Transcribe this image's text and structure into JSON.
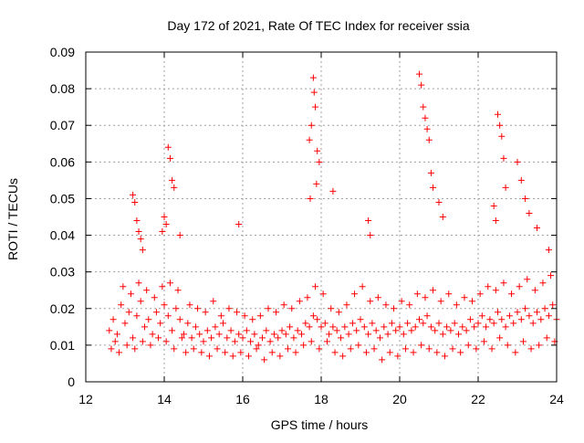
{
  "chart_data": {
    "type": "scatter",
    "title": "Day 172 of 2021, Rate Of TEC Index for receiver ssia",
    "xlabel": "GPS time / hours",
    "ylabel": "ROTI / TECUs",
    "xlim": [
      12,
      24
    ],
    "ylim": [
      0,
      0.09
    ],
    "x_ticks": [
      12,
      14,
      16,
      18,
      20,
      22,
      24
    ],
    "x_tick_labels": [
      "12",
      "14",
      "16",
      "18",
      "20",
      "22",
      "24"
    ],
    "y_ticks": [
      0,
      0.01,
      0.02,
      0.03,
      0.04,
      0.05,
      0.06,
      0.07,
      0.08,
      0.09
    ],
    "y_tick_labels": [
      "0",
      "0.01",
      "0.02",
      "0.03",
      "0.04",
      "0.05",
      "0.06",
      "0.07",
      "0.08",
      "0.09"
    ],
    "grid": true,
    "marker": "+",
    "color": "#ff0000",
    "series": [
      {
        "name": "ROTI",
        "x": [
          12.6,
          12.7,
          12.8,
          12.9,
          13.0,
          13.1,
          13.2,
          13.3,
          13.4,
          13.5,
          13.6,
          13.7,
          13.8,
          13.9,
          14.0,
          14.1,
          14.2,
          14.3,
          14.4,
          14.5,
          14.6,
          14.7,
          14.8,
          14.9,
          15.0,
          15.1,
          15.2,
          15.3,
          15.4,
          15.5,
          15.6,
          15.7,
          15.8,
          15.9,
          16.0,
          16.1,
          16.2,
          16.3,
          16.4,
          16.5,
          16.6,
          16.7,
          16.8,
          16.9,
          17.0,
          17.1,
          17.2,
          17.3,
          17.4,
          17.5,
          17.6,
          17.7,
          17.8,
          17.9,
          18.0,
          18.1,
          18.2,
          18.3,
          18.4,
          18.5,
          18.6,
          18.7,
          18.8,
          18.9,
          19.0,
          19.1,
          19.2,
          19.3,
          19.4,
          19.5,
          19.6,
          19.7,
          19.8,
          19.9,
          20.0,
          20.1,
          20.2,
          20.3,
          20.4,
          20.5,
          20.6,
          20.7,
          20.8,
          20.9,
          21.0,
          21.1,
          21.2,
          21.3,
          21.4,
          21.5,
          21.6,
          21.7,
          21.8,
          21.9,
          22.0,
          22.1,
          22.2,
          22.3,
          22.4,
          22.5,
          22.6,
          22.7,
          22.8,
          22.9,
          23.0,
          23.1,
          23.2,
          23.3,
          23.4,
          23.5,
          23.6,
          23.7,
          23.8,
          23.9,
          24.0,
          12.65,
          12.75,
          12.85,
          12.95,
          13.05,
          13.15,
          13.25,
          13.35,
          13.45,
          13.55,
          13.65,
          13.75,
          13.85,
          13.95,
          14.05,
          14.15,
          14.25,
          14.35,
          14.45,
          14.55,
          14.65,
          14.75,
          14.85,
          14.95,
          15.05,
          15.15,
          15.25,
          15.35,
          15.45,
          15.55,
          15.65,
          15.75,
          15.85,
          15.95,
          16.05,
          16.15,
          16.25,
          16.35,
          16.45,
          16.55,
          16.65,
          16.75,
          16.85,
          16.95,
          17.05,
          17.15,
          17.25,
          17.35,
          17.45,
          17.55,
          17.65,
          17.75,
          17.85,
          17.95,
          18.05,
          18.15,
          18.25,
          18.35,
          18.45,
          18.55,
          18.65,
          18.75,
          18.85,
          18.95,
          19.05,
          19.15,
          19.25,
          19.35,
          19.45,
          19.55,
          19.65,
          19.75,
          19.85,
          19.95,
          20.05,
          20.15,
          20.25,
          20.35,
          20.45,
          20.55,
          20.65,
          20.75,
          20.85,
          20.95,
          21.05,
          21.15,
          21.25,
          21.35,
          21.45,
          21.55,
          21.65,
          21.75,
          21.85,
          21.95,
          22.05,
          22.15,
          22.25,
          22.35,
          22.45,
          22.55,
          22.65,
          22.75,
          22.85,
          22.95,
          23.05,
          23.15,
          23.25,
          23.35,
          23.45,
          23.55,
          23.65,
          23.75,
          23.85,
          23.95,
          13.3,
          13.35,
          13.4,
          13.45,
          13.2,
          13.25,
          14.0,
          14.05,
          14.1,
          14.15,
          14.2,
          13.95,
          14.25,
          14.4,
          15.9,
          17.8,
          17.82,
          17.85,
          17.75,
          17.7,
          17.9,
          17.95,
          17.88,
          17.72,
          18.3,
          19.2,
          19.25,
          20.5,
          20.55,
          20.6,
          20.65,
          20.7,
          20.75,
          20.8,
          20.85,
          21.0,
          21.1,
          22.4,
          22.5,
          22.55,
          22.6,
          22.45,
          22.65,
          22.7,
          23.0,
          23.1,
          23.2,
          23.3,
          23.5,
          23.8
        ],
        "y": [
          0.014,
          0.017,
          0.013,
          0.021,
          0.016,
          0.019,
          0.012,
          0.018,
          0.022,
          0.015,
          0.017,
          0.013,
          0.019,
          0.016,
          0.021,
          0.018,
          0.014,
          0.02,
          0.017,
          0.013,
          0.016,
          0.012,
          0.015,
          0.013,
          0.011,
          0.014,
          0.012,
          0.015,
          0.013,
          0.016,
          0.012,
          0.014,
          0.011,
          0.013,
          0.012,
          0.014,
          0.011,
          0.013,
          0.01,
          0.012,
          0.014,
          0.011,
          0.013,
          0.012,
          0.014,
          0.013,
          0.015,
          0.012,
          0.014,
          0.013,
          0.016,
          0.015,
          0.018,
          0.017,
          0.015,
          0.016,
          0.013,
          0.015,
          0.014,
          0.012,
          0.015,
          0.013,
          0.016,
          0.014,
          0.017,
          0.015,
          0.013,
          0.016,
          0.014,
          0.012,
          0.015,
          0.013,
          0.016,
          0.014,
          0.015,
          0.013,
          0.016,
          0.014,
          0.015,
          0.017,
          0.016,
          0.018,
          0.015,
          0.014,
          0.016,
          0.013,
          0.015,
          0.014,
          0.016,
          0.013,
          0.015,
          0.014,
          0.017,
          0.015,
          0.016,
          0.018,
          0.015,
          0.017,
          0.016,
          0.019,
          0.017,
          0.015,
          0.018,
          0.016,
          0.019,
          0.017,
          0.02,
          0.018,
          0.016,
          0.019,
          0.017,
          0.02,
          0.018,
          0.021,
          0.017,
          0.009,
          0.011,
          0.008,
          0.026,
          0.01,
          0.024,
          0.009,
          0.027,
          0.011,
          0.025,
          0.01,
          0.023,
          0.012,
          0.026,
          0.011,
          0.027,
          0.009,
          0.025,
          0.012,
          0.008,
          0.021,
          0.009,
          0.02,
          0.008,
          0.019,
          0.007,
          0.022,
          0.009,
          0.018,
          0.008,
          0.02,
          0.007,
          0.019,
          0.008,
          0.018,
          0.007,
          0.017,
          0.009,
          0.018,
          0.006,
          0.02,
          0.008,
          0.019,
          0.007,
          0.021,
          0.009,
          0.02,
          0.008,
          0.022,
          0.01,
          0.023,
          0.011,
          0.026,
          0.009,
          0.024,
          0.011,
          0.02,
          0.008,
          0.019,
          0.007,
          0.021,
          0.009,
          0.024,
          0.01,
          0.026,
          0.008,
          0.022,
          0.009,
          0.023,
          0.006,
          0.021,
          0.008,
          0.02,
          0.007,
          0.022,
          0.009,
          0.021,
          0.008,
          0.024,
          0.01,
          0.023,
          0.009,
          0.025,
          0.008,
          0.022,
          0.007,
          0.024,
          0.009,
          0.021,
          0.008,
          0.023,
          0.01,
          0.022,
          0.009,
          0.024,
          0.011,
          0.026,
          0.009,
          0.025,
          0.012,
          0.027,
          0.01,
          0.024,
          0.008,
          0.026,
          0.011,
          0.028,
          0.009,
          0.025,
          0.01,
          0.027,
          0.012,
          0.029,
          0.011,
          0.044,
          0.041,
          0.039,
          0.036,
          0.051,
          0.049,
          0.045,
          0.043,
          0.064,
          0.061,
          0.055,
          0.041,
          0.053,
          0.04,
          0.043,
          0.083,
          0.079,
          0.075,
          0.07,
          0.066,
          0.063,
          0.06,
          0.054,
          0.05,
          0.052,
          0.044,
          0.04,
          0.084,
          0.081,
          0.075,
          0.072,
          0.069,
          0.066,
          0.057,
          0.053,
          0.049,
          0.045,
          0.048,
          0.073,
          0.07,
          0.067,
          0.044,
          0.061,
          0.053,
          0.06,
          0.055,
          0.05,
          0.046,
          0.042,
          0.036
        ]
      }
    ]
  }
}
